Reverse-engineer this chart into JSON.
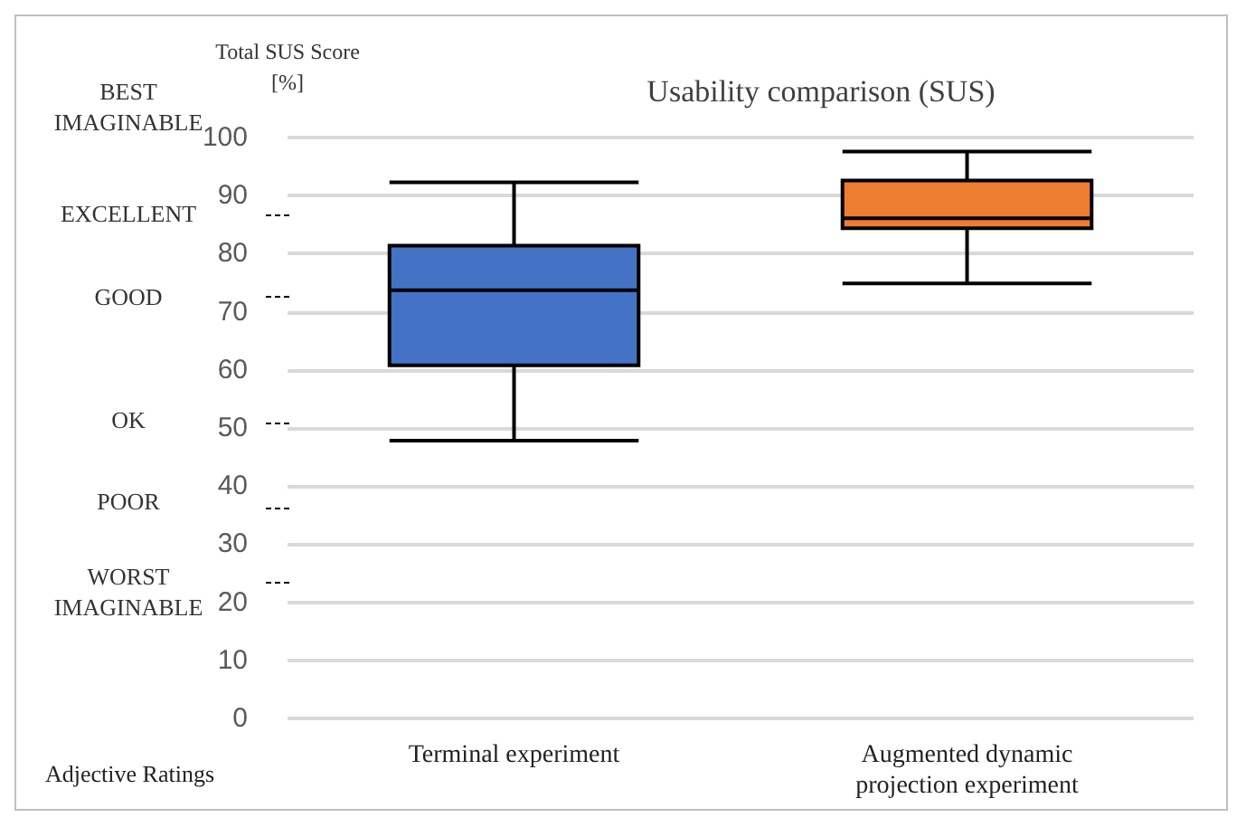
{
  "chart_data": {
    "type": "box",
    "title": "Usability comparison (SUS)",
    "ylabel": "Total SUS Score\n[%]",
    "categories": [
      "Terminal experiment",
      "Augmented dynamic\nprojection experiment"
    ],
    "colors": [
      "#4472c4",
      "#ed7d31"
    ],
    "boxes": [
      {
        "low": 47.8,
        "q1": 60.8,
        "median": 73.7,
        "q3": 81.4,
        "high": 92.3
      },
      {
        "low": 74.9,
        "q1": 84.4,
        "median": 86.1,
        "q3": 92.6,
        "high": 97.6
      }
    ],
    "ylim": [
      0,
      100
    ],
    "yticks": [
      0,
      10,
      20,
      30,
      40,
      50,
      60,
      70,
      80,
      90,
      100
    ],
    "grid": "y",
    "annotations": [
      "BEST\nIMAGINABLE",
      "EXCELLENT",
      "GOOD",
      "OK",
      "POOR",
      "WORST\nIMAGINABLE",
      "Adjective Ratings"
    ]
  }
}
